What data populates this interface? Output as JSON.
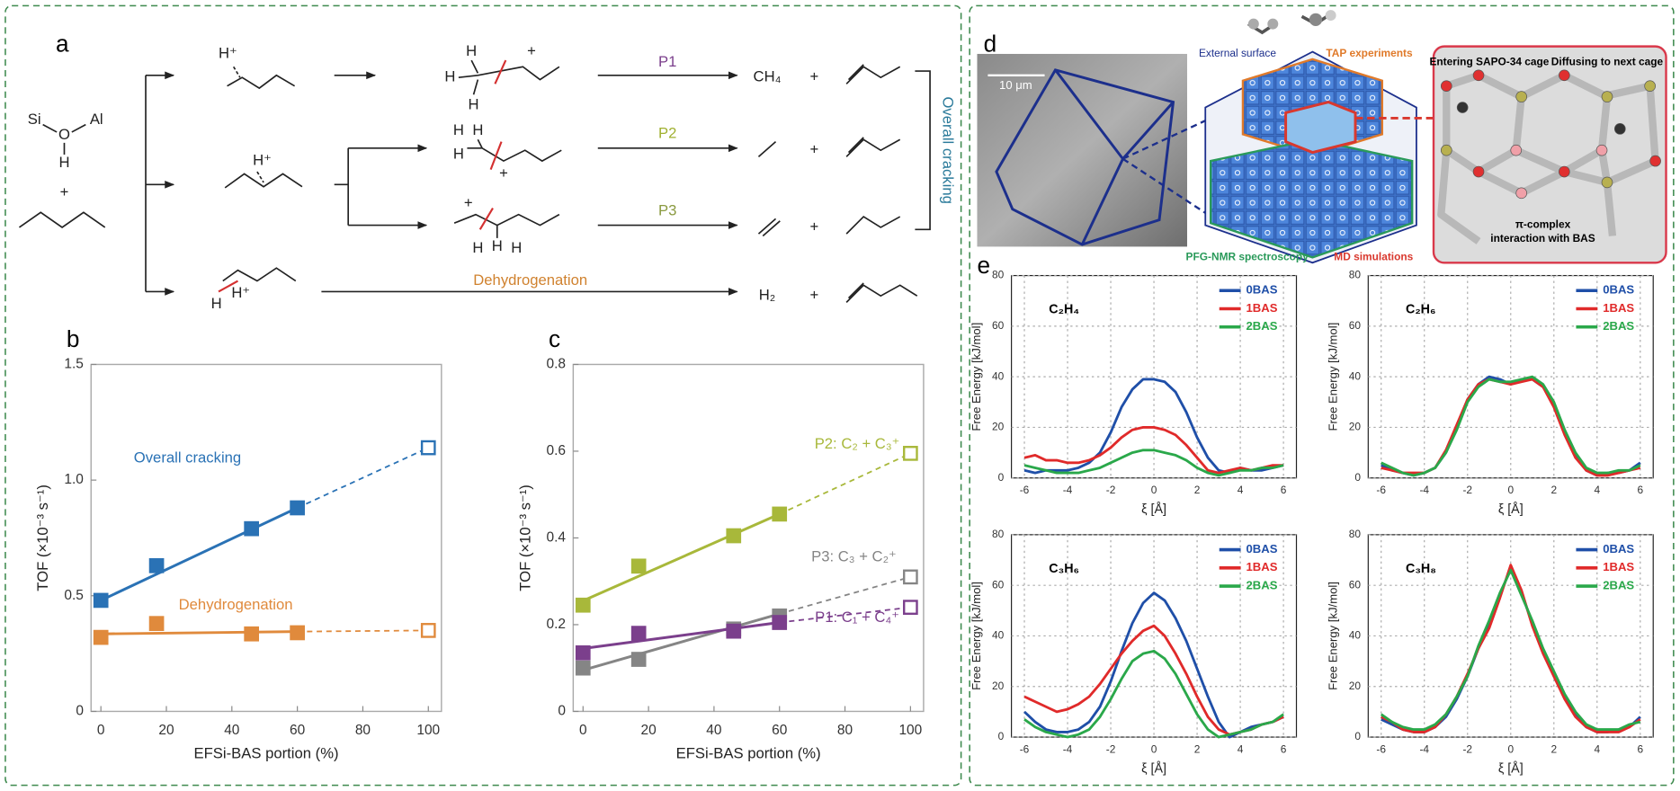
{
  "scheme": {
    "label": "a",
    "atoms": [
      "Si",
      "O",
      "Al",
      "H"
    ],
    "plus": "+",
    "proton": "H⁺",
    "pathways": [
      "P1",
      "P2",
      "P3",
      "Dehydrogenation"
    ],
    "products": [
      "CH₄",
      "H₂"
    ],
    "bracket_label": "Overall cracking"
  },
  "panel_d": {
    "label": "d",
    "scale_bar": "10 μm",
    "labels": [
      "External surface",
      "TAP experiments",
      "PFG-NMR spectroscopy",
      "MD simulations",
      "Entering SAPO-34 cage",
      "Diffusing to next cage",
      "π-complex",
      "interaction with BAS"
    ]
  },
  "chart_data": [
    {
      "type": "line",
      "panel_label": "b",
      "xlabel": "EFSi-BAS portion (%)",
      "ylabel": "TOF (×10⁻³ s⁻¹)",
      "xlim": [
        -3,
        104
      ],
      "ylim": [
        0,
        1.5
      ],
      "xticks": [
        0,
        20,
        40,
        60,
        80,
        100
      ],
      "yticks": [
        0,
        0.5,
        {
          "value": 1,
          "label": "1.0"
        },
        1.5
      ],
      "grid": false,
      "series": [
        {
          "name": "Overall cracking",
          "color": "#2a72b5",
          "x": [
            0,
            17,
            46,
            60
          ],
          "values": [
            0.48,
            0.63,
            0.79,
            0.88
          ],
          "fit_x": [
            0,
            60,
            100
          ],
          "fit_values": [
            0.48,
            0.88,
            1.14
          ],
          "extrapolated_x": 100,
          "extrapolated_value": 1.14
        },
        {
          "name": "Dehydrogenation",
          "color": "#e08a3c",
          "x": [
            0,
            17,
            46,
            60
          ],
          "values": [
            0.32,
            0.38,
            0.335,
            0.34
          ],
          "fit_x": [
            0,
            60,
            100
          ],
          "fit_values": [
            0.335,
            0.345,
            0.35
          ],
          "extrapolated_x": 100,
          "extrapolated_value": 0.35
        }
      ]
    },
    {
      "type": "line",
      "panel_label": "c",
      "xlabel": "EFSi-BAS portion (%)",
      "ylabel": "TOF (×10⁻³ s⁻¹)",
      "xlim": [
        -3,
        104
      ],
      "ylim": [
        0,
        0.8
      ],
      "xticks": [
        0,
        20,
        40,
        60,
        80,
        100
      ],
      "yticks": [
        0,
        0.2,
        0.4,
        0.6,
        0.8
      ],
      "grid": false,
      "series": [
        {
          "name": "P2: C₂ + C₃⁺",
          "color": "#a8b83a",
          "x": [
            0,
            17,
            46,
            60
          ],
          "values": [
            0.245,
            0.335,
            0.405,
            0.455
          ],
          "fit_x": [
            0,
            60,
            100
          ],
          "fit_values": [
            0.255,
            0.455,
            0.595
          ],
          "extrapolated_x": 100,
          "extrapolated_value": 0.595
        },
        {
          "name": "P3: C₃ + C₂⁺",
          "color": "#858585",
          "x": [
            0,
            17,
            46,
            60
          ],
          "values": [
            0.1,
            0.12,
            0.19,
            0.22
          ],
          "fit_x": [
            0,
            60,
            100
          ],
          "fit_values": [
            0.095,
            0.225,
            0.31
          ],
          "extrapolated_x": 100,
          "extrapolated_value": 0.31
        },
        {
          "name": "P1: C₁ + C₄⁺",
          "color": "#7b3f8c",
          "x": [
            0,
            17,
            46,
            60
          ],
          "values": [
            0.135,
            0.18,
            0.185,
            0.205
          ],
          "fit_x": [
            0,
            60,
            100
          ],
          "fit_values": [
            0.145,
            0.205,
            0.24
          ],
          "extrapolated_x": 100,
          "extrapolated_value": 0.24
        }
      ]
    },
    {
      "type": "line",
      "panel_label": "e",
      "title": "C₂H₄",
      "xlabel": "ξ [Å]",
      "ylabel": "Free Energy [kJ/mol]",
      "xlim": [
        -6.6,
        6.6
      ],
      "ylim": [
        0,
        80
      ],
      "xticks": [
        -6,
        -4,
        -2,
        0,
        2,
        4,
        6
      ],
      "yticks": [
        0,
        20,
        40,
        60,
        80
      ],
      "grid": true,
      "legend": "upper right",
      "x": [
        -6,
        -5.5,
        -5,
        -4.5,
        -4,
        -3.5,
        -3,
        -2.5,
        -2,
        -1.5,
        -1,
        -0.5,
        0,
        0.5,
        1,
        1.5,
        2,
        2.5,
        3,
        3.5,
        4,
        4.5,
        5,
        5.5,
        6
      ],
      "series": [
        {
          "name": "0BAS",
          "color": "#1f4fa8",
          "values": [
            3,
            2,
            3,
            3,
            3,
            4,
            6,
            10,
            18,
            28,
            35,
            39,
            39,
            38,
            34,
            26,
            16,
            8,
            3,
            2,
            4,
            3,
            3,
            4,
            5
          ]
        },
        {
          "name": "1BAS",
          "color": "#e02a2a",
          "values": [
            8,
            9,
            7,
            7,
            6,
            6,
            7,
            9,
            12,
            16,
            19,
            20,
            20,
            19,
            17,
            13,
            8,
            3,
            2,
            3,
            4,
            3,
            4,
            5,
            5
          ]
        },
        {
          "name": "2BAS",
          "color": "#2aa84a",
          "values": [
            5,
            4,
            3,
            2,
            2,
            2,
            3,
            4,
            6,
            8,
            10,
            11,
            11,
            10,
            9,
            7,
            4,
            2,
            1,
            2,
            3,
            3,
            4,
            4,
            5
          ]
        }
      ]
    },
    {
      "type": "line",
      "title": "C₂H₆",
      "xlabel": "ξ [Å]",
      "ylabel": "Free Energy [kJ/mol]",
      "xlim": [
        -6.6,
        6.6
      ],
      "ylim": [
        0,
        80
      ],
      "xticks": [
        -6,
        -4,
        -2,
        0,
        2,
        4,
        6
      ],
      "yticks": [
        0,
        20,
        40,
        60,
        80
      ],
      "grid": true,
      "legend": "upper right",
      "x": [
        -6,
        -5.5,
        -5,
        -4.5,
        -4,
        -3.5,
        -3,
        -2.5,
        -2,
        -1.5,
        -1,
        -0.5,
        0,
        0.5,
        1,
        1.5,
        2,
        2.5,
        3,
        3.5,
        4,
        4.5,
        5,
        5.5,
        6
      ],
      "series": [
        {
          "name": "0BAS",
          "color": "#1f4fa8",
          "values": [
            5,
            3,
            2,
            1,
            2,
            4,
            10,
            20,
            31,
            37,
            40,
            39,
            37,
            39,
            39,
            36,
            29,
            18,
            9,
            3,
            1,
            2,
            2,
            3,
            6
          ]
        },
        {
          "name": "1BAS",
          "color": "#e02a2a",
          "values": [
            4,
            3,
            2,
            2,
            2,
            4,
            11,
            21,
            31,
            37,
            39,
            38,
            37,
            38,
            39,
            36,
            28,
            17,
            8,
            3,
            1,
            1,
            2,
            3,
            4
          ]
        },
        {
          "name": "2BAS",
          "color": "#2aa84a",
          "values": [
            6,
            4,
            2,
            1,
            2,
            4,
            10,
            19,
            30,
            36,
            39,
            38,
            38,
            39,
            40,
            37,
            30,
            19,
            10,
            4,
            2,
            2,
            3,
            3,
            5
          ]
        }
      ]
    },
    {
      "type": "line",
      "title": "C₃H₆",
      "xlabel": "ξ [Å]",
      "ylabel": "Free Energy [kJ/mol]",
      "xlim": [
        -6.6,
        6.6
      ],
      "ylim": [
        0,
        80
      ],
      "xticks": [
        -6,
        -4,
        -2,
        0,
        2,
        4,
        6
      ],
      "yticks": [
        0,
        20,
        40,
        60,
        80
      ],
      "grid": true,
      "legend": "upper right",
      "x": [
        -6,
        -5.5,
        -5,
        -4.5,
        -4,
        -3.5,
        -3,
        -2.5,
        -2,
        -1.5,
        -1,
        -0.5,
        0,
        0.5,
        1,
        1.5,
        2,
        2.5,
        3,
        3.5,
        4,
        4.5,
        5,
        5.5,
        6
      ],
      "series": [
        {
          "name": "0BAS",
          "color": "#1f4fa8",
          "values": [
            10,
            6,
            3,
            2,
            2,
            3,
            6,
            12,
            22,
            34,
            45,
            53,
            57,
            54,
            47,
            38,
            27,
            16,
            6,
            0,
            2,
            4,
            5,
            6,
            8
          ]
        },
        {
          "name": "1BAS",
          "color": "#e02a2a",
          "values": [
            16,
            14,
            12,
            10,
            11,
            13,
            16,
            21,
            27,
            33,
            38,
            42,
            44,
            40,
            33,
            25,
            16,
            8,
            3,
            1,
            2,
            3,
            5,
            6,
            8
          ]
        },
        {
          "name": "2BAS",
          "color": "#2aa84a",
          "values": [
            7,
            4,
            2,
            1,
            0,
            1,
            3,
            8,
            15,
            23,
            30,
            33,
            34,
            31,
            25,
            17,
            9,
            3,
            0,
            1,
            2,
            3,
            5,
            6,
            9
          ]
        }
      ]
    },
    {
      "type": "line",
      "title": "C₃H₈",
      "xlabel": "ξ [Å]",
      "ylabel": "Free Energy [kJ/mol]",
      "xlim": [
        -6.6,
        6.6
      ],
      "ylim": [
        0,
        80
      ],
      "xticks": [
        -6,
        -4,
        -2,
        0,
        2,
        4,
        6
      ],
      "yticks": [
        0,
        20,
        40,
        60,
        80
      ],
      "grid": true,
      "legend": "upper right",
      "x": [
        -6,
        -5.5,
        -5,
        -4.5,
        -4,
        -3.5,
        -3,
        -2.5,
        -2,
        -1.5,
        -1,
        -0.5,
        0,
        0.5,
        1,
        1.5,
        2,
        2.5,
        3,
        3.5,
        4,
        4.5,
        5,
        5.5,
        6
      ],
      "series": [
        {
          "name": "0BAS",
          "color": "#1f4fa8",
          "values": [
            7,
            5,
            3,
            2,
            2,
            4,
            8,
            15,
            24,
            35,
            44,
            56,
            67,
            57,
            45,
            34,
            25,
            16,
            9,
            4,
            2,
            2,
            3,
            4,
            8
          ]
        },
        {
          "name": "1BAS",
          "color": "#e02a2a",
          "values": [
            8,
            6,
            3,
            2,
            2,
            4,
            9,
            16,
            25,
            35,
            43,
            55,
            68,
            58,
            44,
            33,
            24,
            15,
            8,
            4,
            2,
            2,
            2,
            4,
            7
          ]
        },
        {
          "name": "2BAS",
          "color": "#2aa84a",
          "values": [
            9,
            6,
            4,
            3,
            3,
            5,
            9,
            16,
            24,
            36,
            46,
            57,
            66,
            56,
            46,
            35,
            26,
            17,
            10,
            5,
            3,
            3,
            3,
            5,
            6
          ]
        }
      ]
    }
  ]
}
